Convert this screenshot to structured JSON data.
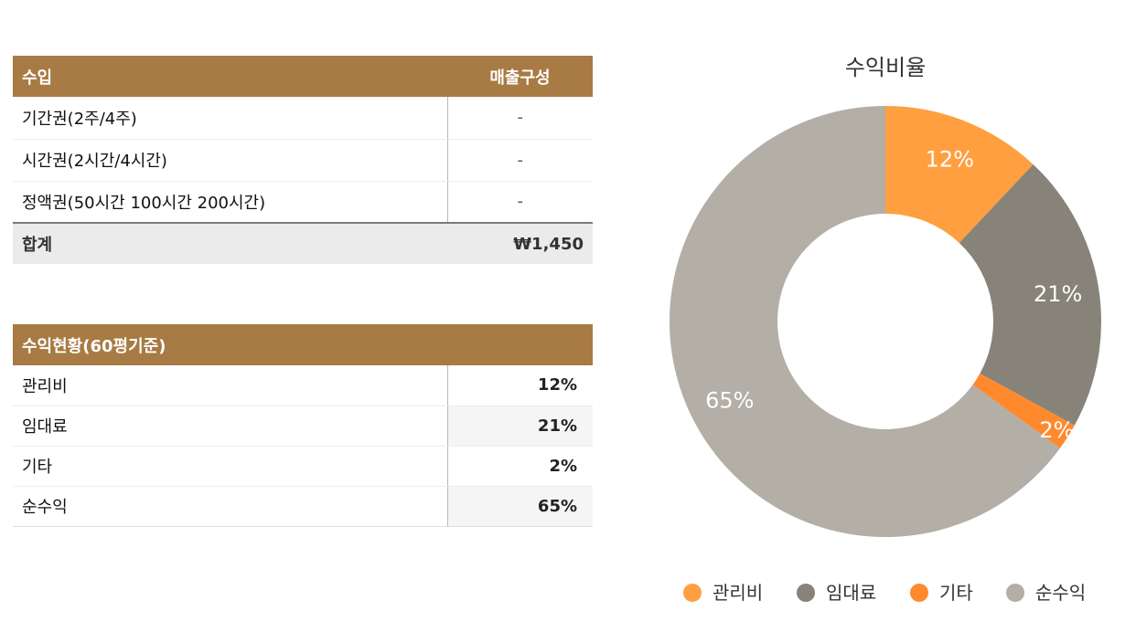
{
  "revenue_table": {
    "headers": [
      "수입",
      "매출구성"
    ],
    "rows": [
      {
        "label": "기간권(2주/4주)",
        "value": "-"
      },
      {
        "label": "시간권(2시간/4시간)",
        "value": "-"
      },
      {
        "label": "정액권(50시간 100시간 200시간)",
        "value": "-"
      }
    ],
    "total": {
      "label": "합계",
      "value": "₩1,450"
    }
  },
  "profit_table": {
    "header": "수익현황(60평기준)",
    "rows": [
      {
        "label": "관리비",
        "value": "12%"
      },
      {
        "label": "임대료",
        "value": "21%"
      },
      {
        "label": "기타",
        "value": "2%"
      },
      {
        "label": "순수익",
        "value": "65%"
      }
    ]
  },
  "chart_data": {
    "type": "pie",
    "donut": true,
    "title": "수익비율",
    "categories": [
      "관리비",
      "임대료",
      "기타",
      "순수익"
    ],
    "values": [
      12,
      21,
      2,
      65
    ],
    "labels": [
      "12%",
      "21%",
      "2%",
      "65%"
    ],
    "colors": [
      "#ff9f40",
      "#878379",
      "#ff8a2e",
      "#b3aea6"
    ],
    "legend": "bottom"
  }
}
